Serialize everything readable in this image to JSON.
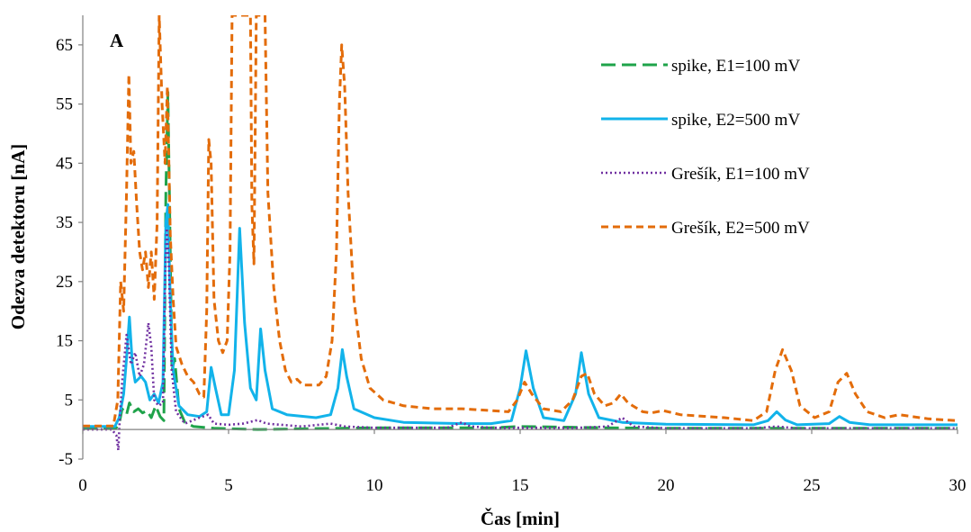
{
  "chart_data": {
    "type": "line",
    "panel_label": "A",
    "xlabel": "Čas [min]",
    "ylabel": "Odezva detektoru [nA]",
    "xlim": [
      0,
      30
    ],
    "ylim": [
      -5,
      70
    ],
    "xticks": [
      0,
      5,
      10,
      15,
      20,
      25,
      30
    ],
    "yticks": [
      -5,
      5,
      15,
      25,
      35,
      45,
      55,
      65
    ],
    "grid": false,
    "legend_position": "top-right",
    "series": [
      {
        "name": "spike, E1=100 mV",
        "color": "#1fa34a",
        "style": "long-dash",
        "points": [
          [
            0,
            0.2
          ],
          [
            1.0,
            0.2
          ],
          [
            1.15,
            0.3
          ],
          [
            1.25,
            1.0
          ],
          [
            1.35,
            3.5
          ],
          [
            1.5,
            2.5
          ],
          [
            1.6,
            4.5
          ],
          [
            1.75,
            3.0
          ],
          [
            1.9,
            3.5
          ],
          [
            2.05,
            2.8
          ],
          [
            2.2,
            3.2
          ],
          [
            2.35,
            2.0
          ],
          [
            2.5,
            4.0
          ],
          [
            2.65,
            2.2
          ],
          [
            2.78,
            1.5
          ],
          [
            2.85,
            40
          ],
          [
            2.92,
            57
          ],
          [
            3.0,
            30
          ],
          [
            3.06,
            10
          ],
          [
            3.15,
            12
          ],
          [
            3.3,
            3.5
          ],
          [
            3.5,
            1.2
          ],
          [
            3.8,
            0.5
          ],
          [
            4.5,
            0.2
          ],
          [
            6,
            0.0
          ],
          [
            10,
            0.3
          ],
          [
            14,
            0.3
          ],
          [
            15,
            0.5
          ],
          [
            18,
            0.3
          ],
          [
            20,
            0.2
          ],
          [
            25,
            0.2
          ],
          [
            30,
            0.2
          ]
        ]
      },
      {
        "name": "spike, E2=500 mV",
        "color": "#12b3ea",
        "style": "solid",
        "points": [
          [
            0,
            0.5
          ],
          [
            1.1,
            0.5
          ],
          [
            1.25,
            2
          ],
          [
            1.4,
            6
          ],
          [
            1.5,
            12
          ],
          [
            1.6,
            19
          ],
          [
            1.7,
            11
          ],
          [
            1.8,
            8
          ],
          [
            2.0,
            9
          ],
          [
            2.15,
            8
          ],
          [
            2.3,
            5
          ],
          [
            2.45,
            6
          ],
          [
            2.6,
            4.5
          ],
          [
            2.75,
            8
          ],
          [
            2.85,
            35
          ],
          [
            2.92,
            38
          ],
          [
            3.0,
            22
          ],
          [
            3.1,
            10
          ],
          [
            3.3,
            4
          ],
          [
            3.6,
            2.5
          ],
          [
            4.0,
            2.2
          ],
          [
            4.25,
            3
          ],
          [
            4.4,
            10.5
          ],
          [
            4.55,
            7
          ],
          [
            4.75,
            2.5
          ],
          [
            5.0,
            2.5
          ],
          [
            5.2,
            10
          ],
          [
            5.38,
            34
          ],
          [
            5.55,
            18
          ],
          [
            5.75,
            7
          ],
          [
            5.95,
            5
          ],
          [
            6.1,
            17
          ],
          [
            6.25,
            10
          ],
          [
            6.5,
            3.5
          ],
          [
            7.0,
            2.5
          ],
          [
            8.0,
            2.0
          ],
          [
            8.5,
            2.5
          ],
          [
            8.75,
            7
          ],
          [
            8.9,
            13.5
          ],
          [
            9.05,
            9
          ],
          [
            9.3,
            3.5
          ],
          [
            10,
            2.0
          ],
          [
            11,
            1.2
          ],
          [
            13,
            1.0
          ],
          [
            14,
            1.0
          ],
          [
            14.7,
            1.5
          ],
          [
            15.0,
            7
          ],
          [
            15.2,
            13.3
          ],
          [
            15.45,
            7
          ],
          [
            15.8,
            2
          ],
          [
            16.5,
            1.5
          ],
          [
            16.9,
            6
          ],
          [
            17.1,
            13
          ],
          [
            17.35,
            6
          ],
          [
            17.7,
            2
          ],
          [
            18.5,
            1.2
          ],
          [
            20,
            0.9
          ],
          [
            23,
            0.8
          ],
          [
            23.5,
            1.5
          ],
          [
            23.8,
            3
          ],
          [
            24.1,
            1.6
          ],
          [
            24.5,
            0.8
          ],
          [
            25.6,
            1.0
          ],
          [
            25.95,
            2.2
          ],
          [
            26.3,
            1.2
          ],
          [
            27,
            0.8
          ],
          [
            30,
            0.8
          ]
        ]
      },
      {
        "name": "Grešík, E1=100 mV",
        "color": "#7030a0",
        "style": "dotted",
        "points": [
          [
            0,
            0
          ],
          [
            1.0,
            0
          ],
          [
            1.15,
            -1
          ],
          [
            1.22,
            -3.5
          ],
          [
            1.27,
            2
          ],
          [
            1.35,
            8
          ],
          [
            1.5,
            16
          ],
          [
            1.65,
            11
          ],
          [
            1.8,
            13
          ],
          [
            1.95,
            9
          ],
          [
            2.1,
            11
          ],
          [
            2.25,
            18
          ],
          [
            2.35,
            14
          ],
          [
            2.45,
            5
          ],
          [
            2.6,
            4
          ],
          [
            2.75,
            4.5
          ],
          [
            2.82,
            25
          ],
          [
            2.88,
            34
          ],
          [
            2.95,
            28
          ],
          [
            3.05,
            10
          ],
          [
            3.2,
            3
          ],
          [
            3.5,
            1
          ],
          [
            4.0,
            2
          ],
          [
            4.3,
            2.5
          ],
          [
            4.5,
            1
          ],
          [
            5.0,
            0.8
          ],
          [
            5.5,
            1.0
          ],
          [
            6.0,
            1.6
          ],
          [
            6.3,
            1.0
          ],
          [
            6.8,
            0.8
          ],
          [
            7.5,
            0.5
          ],
          [
            8.5,
            1.0
          ],
          [
            9.0,
            0.5
          ],
          [
            10,
            0.3
          ],
          [
            12.5,
            0.3
          ],
          [
            13.0,
            1.2
          ],
          [
            13.3,
            0.5
          ],
          [
            14,
            0.3
          ],
          [
            17,
            0.3
          ],
          [
            18.0,
            0.5
          ],
          [
            18.5,
            2.0
          ],
          [
            18.9,
            0.5
          ],
          [
            20,
            0.2
          ],
          [
            23,
            0.2
          ],
          [
            23.8,
            0.5
          ],
          [
            24.5,
            0.2
          ],
          [
            30,
            0.2
          ]
        ]
      },
      {
        "name": "Grešík, E2=500 mV",
        "color": "#e36c0a",
        "style": "short-dash",
        "points": [
          [
            0,
            0.6
          ],
          [
            1.05,
            0.6
          ],
          [
            1.2,
            5
          ],
          [
            1.3,
            25
          ],
          [
            1.4,
            20
          ],
          [
            1.5,
            40
          ],
          [
            1.58,
            60
          ],
          [
            1.65,
            45
          ],
          [
            1.75,
            47
          ],
          [
            1.85,
            38
          ],
          [
            1.95,
            30
          ],
          [
            2.05,
            27
          ],
          [
            2.15,
            30
          ],
          [
            2.25,
            24
          ],
          [
            2.35,
            30
          ],
          [
            2.45,
            22
          ],
          [
            2.55,
            35
          ],
          [
            2.62,
            70
          ],
          [
            2.72,
            55
          ],
          [
            2.82,
            45
          ],
          [
            2.9,
            58
          ],
          [
            3.0,
            33
          ],
          [
            3.1,
            22
          ],
          [
            3.2,
            14
          ],
          [
            3.4,
            11
          ],
          [
            3.6,
            9
          ],
          [
            3.8,
            8
          ],
          [
            4.0,
            6
          ],
          [
            4.15,
            5.5
          ],
          [
            4.25,
            20
          ],
          [
            4.32,
            49
          ],
          [
            4.4,
            45
          ],
          [
            4.5,
            22
          ],
          [
            4.65,
            15
          ],
          [
            4.8,
            13
          ],
          [
            4.95,
            15
          ],
          [
            5.05,
            30
          ],
          [
            5.12,
            70
          ],
          [
            5.75,
            70
          ],
          [
            5.8,
            38
          ],
          [
            5.87,
            28
          ],
          [
            5.95,
            70
          ],
          [
            6.25,
            70
          ],
          [
            6.35,
            40
          ],
          [
            6.55,
            24
          ],
          [
            6.75,
            15
          ],
          [
            6.95,
            10
          ],
          [
            7.15,
            8
          ],
          [
            7.35,
            8.5
          ],
          [
            7.55,
            7.5
          ],
          [
            7.9,
            7.5
          ],
          [
            8.1,
            7.5
          ],
          [
            8.35,
            9
          ],
          [
            8.55,
            15
          ],
          [
            8.7,
            30
          ],
          [
            8.8,
            55
          ],
          [
            8.88,
            65
          ],
          [
            8.98,
            58
          ],
          [
            9.1,
            40
          ],
          [
            9.3,
            22
          ],
          [
            9.55,
            12
          ],
          [
            9.85,
            7
          ],
          [
            10.3,
            5
          ],
          [
            11,
            4
          ],
          [
            12,
            3.5
          ],
          [
            13,
            3.5
          ],
          [
            14,
            3.2
          ],
          [
            14.6,
            3.0
          ],
          [
            14.9,
            5
          ],
          [
            15.15,
            8
          ],
          [
            15.4,
            6
          ],
          [
            15.8,
            3.5
          ],
          [
            16.4,
            3.0
          ],
          [
            16.8,
            5
          ],
          [
            17.1,
            9
          ],
          [
            17.3,
            9.5
          ],
          [
            17.55,
            6
          ],
          [
            17.9,
            4
          ],
          [
            18.2,
            4.5
          ],
          [
            18.45,
            6
          ],
          [
            18.7,
            4.5
          ],
          [
            19.2,
            3
          ],
          [
            19.5,
            2.8
          ],
          [
            19.9,
            3.2
          ],
          [
            20.5,
            2.5
          ],
          [
            22,
            2.0
          ],
          [
            23,
            1.5
          ],
          [
            23.45,
            3
          ],
          [
            23.75,
            10
          ],
          [
            24.0,
            13.5
          ],
          [
            24.3,
            10
          ],
          [
            24.6,
            4
          ],
          [
            25.1,
            2
          ],
          [
            25.6,
            3
          ],
          [
            25.9,
            8
          ],
          [
            26.2,
            9.5
          ],
          [
            26.5,
            6
          ],
          [
            26.9,
            3
          ],
          [
            27.5,
            2
          ],
          [
            28,
            2.5
          ],
          [
            29,
            1.8
          ],
          [
            30,
            1.5
          ]
        ]
      }
    ]
  }
}
